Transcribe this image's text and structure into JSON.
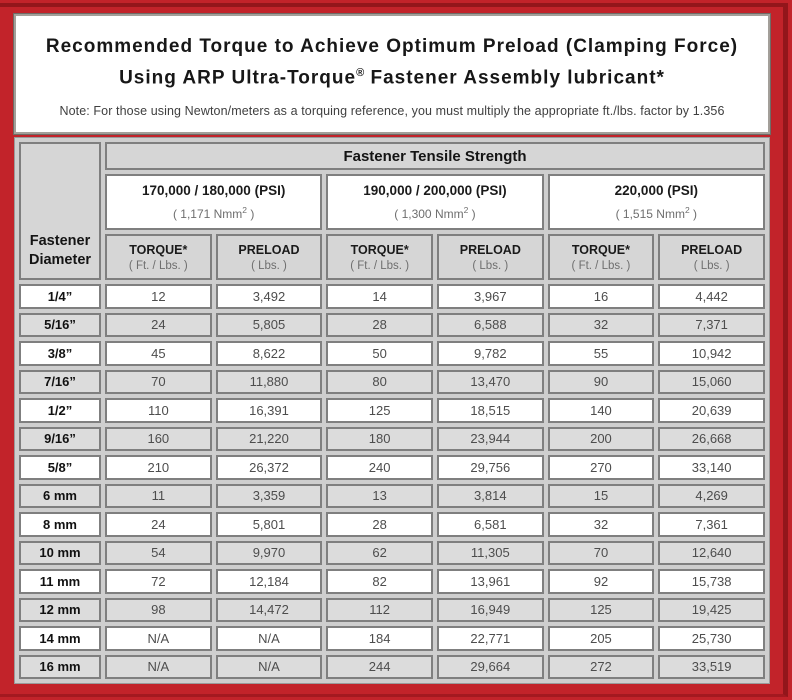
{
  "title": {
    "line1": "Recommended Torque to Achieve Optimum Preload (Clamping Force)",
    "line2_prefix": "Using ARP Ultra-Torque",
    "line2_reg": "®",
    "line2_suffix": " Fastener Assembly lubricant*"
  },
  "note": "Note: For those using Newton/meters as a torquing reference, you must multiply the appropriate ft./lbs. factor by 1.356",
  "table": {
    "corner_line1": "Fastener",
    "corner_line2": "Diameter",
    "tensile_header": "Fastener Tensile Strength",
    "groups": [
      {
        "psi": "170,000 / 180,000 (PSI)",
        "nmm_prefix": "( 1,171 Nmm",
        "nmm_sup": "2",
        "nmm_suffix": " )"
      },
      {
        "psi": "190,000 / 200,000 (PSI)",
        "nmm_prefix": "( 1,300 Nmm",
        "nmm_sup": "2",
        "nmm_suffix": " )"
      },
      {
        "psi": "220,000 (PSI)",
        "nmm_prefix": "( 1,515 Nmm",
        "nmm_sup": "2",
        "nmm_suffix": " )"
      }
    ],
    "col_headers": {
      "torque": "TORQUE*",
      "torque_unit": "( Ft. / Lbs. )",
      "preload": "PRELOAD",
      "preload_unit": "( Lbs. )"
    },
    "rows": [
      {
        "label": "1/4”",
        "values": [
          "12",
          "3,492",
          "14",
          "3,967",
          "16",
          "4,442"
        ]
      },
      {
        "label": "5/16”",
        "values": [
          "24",
          "5,805",
          "28",
          "6,588",
          "32",
          "7,371"
        ]
      },
      {
        "label": "3/8”",
        "values": [
          "45",
          "8,622",
          "50",
          "9,782",
          "55",
          "10,942"
        ]
      },
      {
        "label": "7/16”",
        "values": [
          "70",
          "11,880",
          "80",
          "13,470",
          "90",
          "15,060"
        ]
      },
      {
        "label": "1/2”",
        "values": [
          "110",
          "16,391",
          "125",
          "18,515",
          "140",
          "20,639"
        ]
      },
      {
        "label": "9/16”",
        "values": [
          "160",
          "21,220",
          "180",
          "23,944",
          "200",
          "26,668"
        ]
      },
      {
        "label": "5/8”",
        "values": [
          "210",
          "26,372",
          "240",
          "29,756",
          "270",
          "33,140"
        ]
      },
      {
        "label": "6 mm",
        "values": [
          "11",
          "3,359",
          "13",
          "3,814",
          "15",
          "4,269"
        ]
      },
      {
        "label": "8 mm",
        "values": [
          "24",
          "5,801",
          "28",
          "6,581",
          "32",
          "7,361"
        ]
      },
      {
        "label": "10 mm",
        "values": [
          "54",
          "9,970",
          "62",
          "11,305",
          "70",
          "12,640"
        ]
      },
      {
        "label": "11 mm",
        "values": [
          "72",
          "12,184",
          "82",
          "13,961",
          "92",
          "15,738"
        ]
      },
      {
        "label": "12 mm",
        "values": [
          "98",
          "14,472",
          "112",
          "16,949",
          "125",
          "19,425"
        ]
      },
      {
        "label": "14 mm",
        "values": [
          "N/A",
          "N/A",
          "184",
          "22,771",
          "205",
          "25,730"
        ]
      },
      {
        "label": "16 mm",
        "values": [
          "N/A",
          "N/A",
          "244",
          "29,664",
          "272",
          "33,519"
        ]
      }
    ]
  },
  "colors": {
    "frame_red": "#c2232a",
    "frame_accent_dark_red": "#93161b",
    "chrome_gray": "#cecece",
    "cell_border_gray": "#7f7f7f",
    "header_gray": "#d6d6d6",
    "alt_row_gray": "#dcdcdc",
    "title_text": "#171717",
    "value_text": "#4d4d4d"
  }
}
